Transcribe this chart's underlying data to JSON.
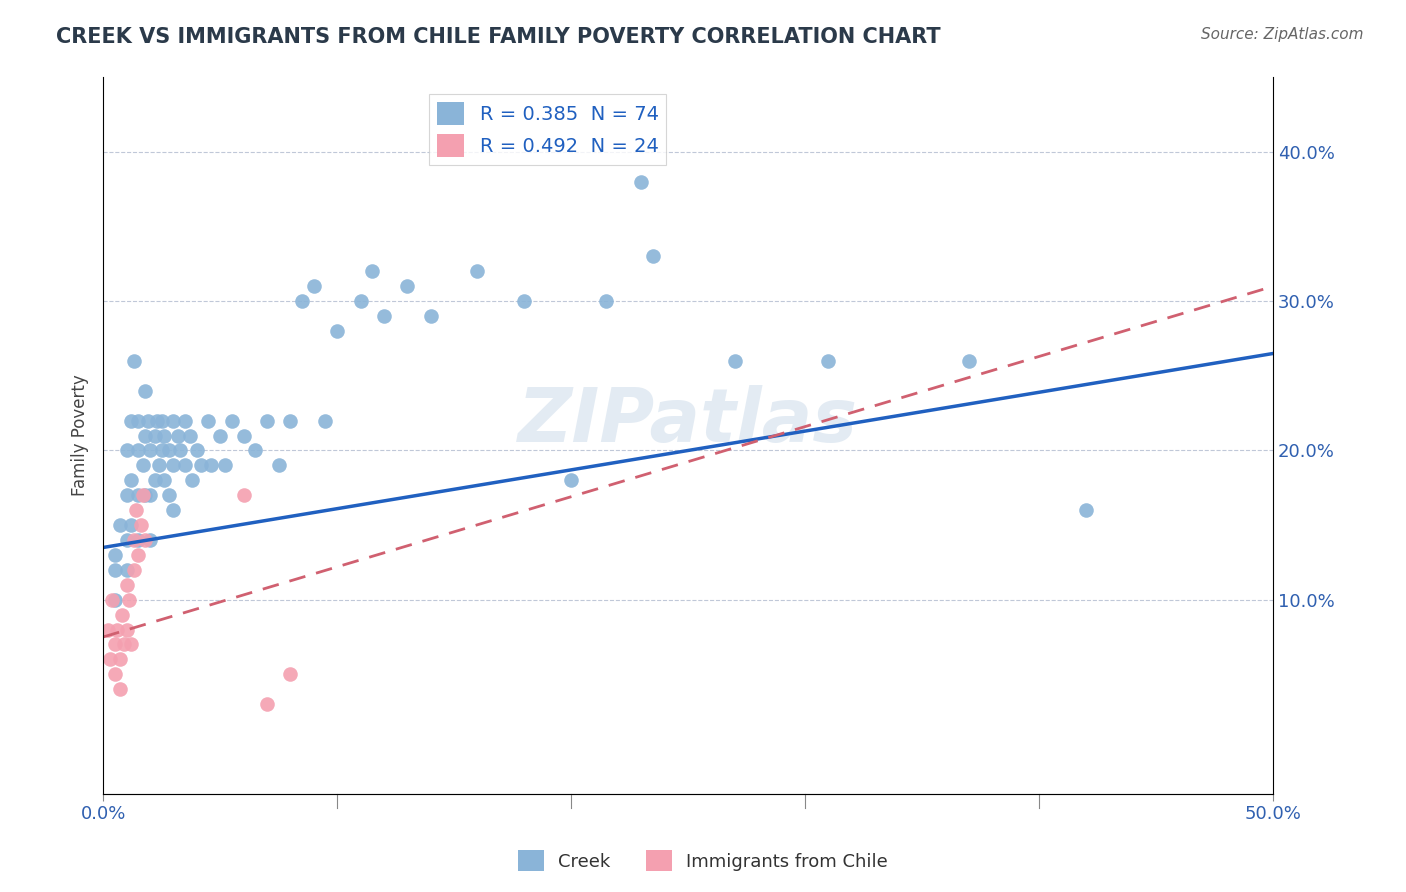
{
  "title": "CREEK VS IMMIGRANTS FROM CHILE FAMILY POVERTY CORRELATION CHART",
  "source": "Source: ZipAtlas.com",
  "ylabel": "Family Poverty",
  "xlim": [
    0.0,
    0.5
  ],
  "ylim": [
    -0.03,
    0.45
  ],
  "yticks": [
    0.1,
    0.2,
    0.3,
    0.4
  ],
  "ytick_labels": [
    "10.0%",
    "20.0%",
    "30.0%",
    "40.0%"
  ],
  "xtick_ends": [
    0.0,
    0.5
  ],
  "xtick_end_labels": [
    "0.0%",
    "50.0%"
  ],
  "xtick_minor": [
    0.1,
    0.2,
    0.3,
    0.4
  ],
  "creek_color": "#8ab4d8",
  "chile_color": "#f4a0b0",
  "creek_line_color": "#2060c0",
  "chile_line_color": "#d06070",
  "creek_R": 0.385,
  "creek_N": 74,
  "chile_R": 0.492,
  "chile_N": 24,
  "watermark": "ZIPatlas",
  "legend_label_creek": "Creek",
  "legend_label_chile": "Immigrants from Chile",
  "creek_scatter": [
    [
      0.005,
      0.13
    ],
    [
      0.005,
      0.12
    ],
    [
      0.005,
      0.1
    ],
    [
      0.007,
      0.15
    ],
    [
      0.01,
      0.2
    ],
    [
      0.01,
      0.17
    ],
    [
      0.01,
      0.14
    ],
    [
      0.01,
      0.12
    ],
    [
      0.012,
      0.22
    ],
    [
      0.012,
      0.18
    ],
    [
      0.012,
      0.15
    ],
    [
      0.013,
      0.26
    ],
    [
      0.015,
      0.2
    ],
    [
      0.015,
      0.17
    ],
    [
      0.015,
      0.14
    ],
    [
      0.015,
      0.22
    ],
    [
      0.017,
      0.19
    ],
    [
      0.018,
      0.24
    ],
    [
      0.018,
      0.21
    ],
    [
      0.018,
      0.17
    ],
    [
      0.019,
      0.22
    ],
    [
      0.02,
      0.2
    ],
    [
      0.02,
      0.17
    ],
    [
      0.02,
      0.14
    ],
    [
      0.022,
      0.21
    ],
    [
      0.022,
      0.18
    ],
    [
      0.023,
      0.22
    ],
    [
      0.024,
      0.19
    ],
    [
      0.025,
      0.22
    ],
    [
      0.025,
      0.2
    ],
    [
      0.026,
      0.21
    ],
    [
      0.026,
      0.18
    ],
    [
      0.028,
      0.2
    ],
    [
      0.028,
      0.17
    ],
    [
      0.03,
      0.22
    ],
    [
      0.03,
      0.19
    ],
    [
      0.03,
      0.16
    ],
    [
      0.032,
      0.21
    ],
    [
      0.033,
      0.2
    ],
    [
      0.035,
      0.22
    ],
    [
      0.035,
      0.19
    ],
    [
      0.037,
      0.21
    ],
    [
      0.038,
      0.18
    ],
    [
      0.04,
      0.2
    ],
    [
      0.042,
      0.19
    ],
    [
      0.045,
      0.22
    ],
    [
      0.046,
      0.19
    ],
    [
      0.05,
      0.21
    ],
    [
      0.052,
      0.19
    ],
    [
      0.055,
      0.22
    ],
    [
      0.06,
      0.21
    ],
    [
      0.065,
      0.2
    ],
    [
      0.07,
      0.22
    ],
    [
      0.075,
      0.19
    ],
    [
      0.08,
      0.22
    ],
    [
      0.085,
      0.3
    ],
    [
      0.09,
      0.31
    ],
    [
      0.095,
      0.22
    ],
    [
      0.1,
      0.28
    ],
    [
      0.11,
      0.3
    ],
    [
      0.115,
      0.32
    ],
    [
      0.12,
      0.29
    ],
    [
      0.13,
      0.31
    ],
    [
      0.14,
      0.29
    ],
    [
      0.16,
      0.32
    ],
    [
      0.18,
      0.3
    ],
    [
      0.2,
      0.18
    ],
    [
      0.215,
      0.3
    ],
    [
      0.23,
      0.38
    ],
    [
      0.235,
      0.33
    ],
    [
      0.27,
      0.26
    ],
    [
      0.31,
      0.26
    ],
    [
      0.37,
      0.26
    ],
    [
      0.42,
      0.16
    ]
  ],
  "chile_scatter": [
    [
      0.002,
      0.08
    ],
    [
      0.003,
      0.06
    ],
    [
      0.004,
      0.1
    ],
    [
      0.005,
      0.07
    ],
    [
      0.005,
      0.05
    ],
    [
      0.006,
      0.08
    ],
    [
      0.007,
      0.06
    ],
    [
      0.007,
      0.04
    ],
    [
      0.008,
      0.09
    ],
    [
      0.009,
      0.07
    ],
    [
      0.01,
      0.11
    ],
    [
      0.01,
      0.08
    ],
    [
      0.011,
      0.1
    ],
    [
      0.012,
      0.07
    ],
    [
      0.013,
      0.12
    ],
    [
      0.013,
      0.14
    ],
    [
      0.014,
      0.16
    ],
    [
      0.015,
      0.13
    ],
    [
      0.016,
      0.15
    ],
    [
      0.017,
      0.17
    ],
    [
      0.018,
      0.14
    ],
    [
      0.06,
      0.17
    ],
    [
      0.07,
      0.03
    ],
    [
      0.08,
      0.05
    ]
  ],
  "creek_trend_x": [
    0.0,
    0.5
  ],
  "creek_trend_y": [
    0.135,
    0.265
  ],
  "chile_trend_x": [
    0.0,
    0.5
  ],
  "chile_trend_y": [
    0.075,
    0.31
  ]
}
